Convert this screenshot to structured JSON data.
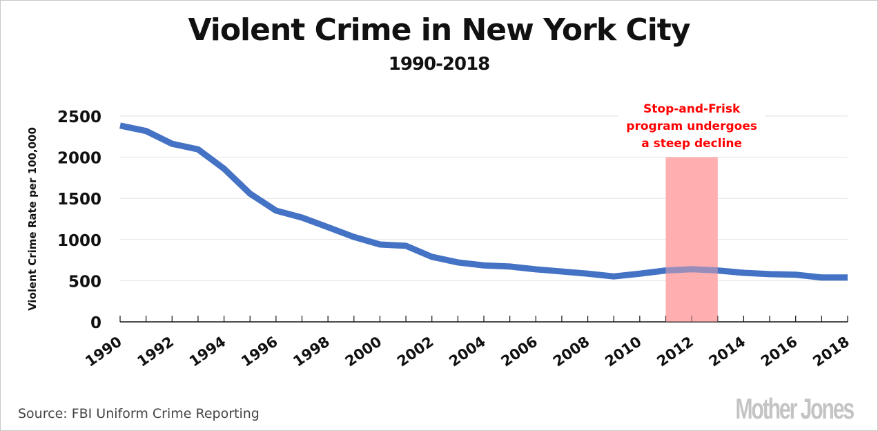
{
  "chart_data": {
    "type": "line",
    "title": "Violent Crime in New York City",
    "subtitle": "1990-2018",
    "xlabel": "",
    "ylabel": "Violent Crime Rate per 100,000",
    "ylim": [
      0,
      2500
    ],
    "xlim": [
      1990,
      2018
    ],
    "yticks": [
      "0",
      "500",
      "1000",
      "1500",
      "2000",
      "2500"
    ],
    "ytick_values": [
      0,
      500,
      1000,
      1500,
      2000,
      2500
    ],
    "xticks": [
      "1990",
      "1992",
      "1994",
      "1996",
      "1998",
      "2000",
      "2002",
      "2004",
      "2006",
      "2008",
      "2010",
      "2012",
      "2014",
      "2016",
      "2018"
    ],
    "grid": true,
    "series": [
      {
        "name": "Violent Crime Rate",
        "color": "#4472c4",
        "x": [
          1990,
          1991,
          1992,
          1993,
          1994,
          1995,
          1996,
          1997,
          1998,
          1999,
          2000,
          2001,
          2002,
          2003,
          2004,
          2005,
          2006,
          2007,
          2008,
          2009,
          2010,
          2011,
          2012,
          2013,
          2014,
          2015,
          2016,
          2017,
          2018
        ],
        "values": [
          2384,
          2318,
          2163,
          2095,
          1860,
          1557,
          1351,
          1267,
          1150,
          1031,
          940,
          924,
          790,
          722,
          686,
          672,
          638,
          612,
          585,
          552,
          585,
          624,
          640,
          624,
          596,
          580,
          573,
          539,
          539
        ]
      }
    ],
    "highlight": {
      "x_range": [
        2011,
        2013
      ],
      "y_top": 2000,
      "color": "#ffb0b0",
      "annotation": [
        "Stop-and-Frisk",
        "program undergoes",
        "a steep decline"
      ],
      "annotation_color": "#ff0000"
    }
  },
  "footer": {
    "source": "Source: FBI Uniform Crime Reporting",
    "brand": "Mother Jones"
  }
}
